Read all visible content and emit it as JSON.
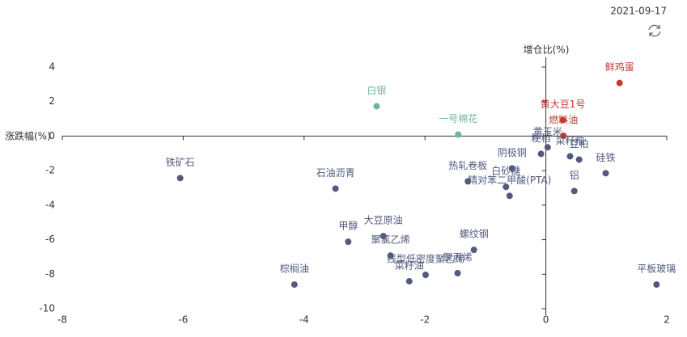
{
  "date": "2021-09-17",
  "chart_data": {
    "type": "scatter",
    "x_label": "增仓比(%)",
    "y_label": "涨跌幅(%)",
    "labels": [
      "鲜鸡蛋",
      "白银",
      "一号棉花",
      "黄大豆1号",
      "燃料油",
      "黄玉米",
      "粳稻",
      "菜籽粕",
      "豆粕",
      "硅铁",
      "铝",
      "阴极铜",
      "热轧卷板",
      "白砂糖",
      "精对苯二甲酸(PTA)",
      "铁矿石",
      "石油沥青",
      "甲醇",
      "大豆原油",
      "聚氯乙烯",
      "螺纹钢",
      "线型低密度聚乙烯",
      "聚丙烯",
      "菜籽油",
      "棕榈油",
      "平板玻璃"
    ],
    "x": [
      1.22,
      -2.8,
      -1.45,
      0.28,
      0.29,
      0.03,
      -0.08,
      0.4,
      0.55,
      0.99,
      0.47,
      -0.56,
      -1.29,
      -0.66,
      -0.6,
      -6.05,
      -3.48,
      -3.27,
      -2.69,
      -2.57,
      -1.19,
      -1.99,
      -1.46,
      -2.26,
      -4.16,
      1.83
    ],
    "values": [
      3.08,
      1.73,
      0.09,
      0.93,
      0.02,
      -0.65,
      -1.03,
      -1.17,
      -1.36,
      -2.15,
      -3.18,
      -1.87,
      -2.62,
      -2.94,
      -3.46,
      -2.43,
      -3.04,
      -6.12,
      -5.79,
      -6.92,
      -6.59,
      -8.04,
      -7.94,
      -8.41,
      -8.6,
      -8.6
    ],
    "colors": [
      "#c23b30",
      "#6fb59d",
      "#6fb59d",
      "#c23b30",
      "#c23b30",
      "#525a7e",
      "#525a7e",
      "#525a7e",
      "#525a7e",
      "#525a7e",
      "#525a7e",
      "#525a7e",
      "#525a7e",
      "#525a7e",
      "#525a7e",
      "#525a7e",
      "#525a7e",
      "#525a7e",
      "#525a7e",
      "#525a7e",
      "#525a7e",
      "#525a7e",
      "#525a7e",
      "#525a7e",
      "#525a7e",
      "#525a7e"
    ],
    "xlim": [
      -8,
      2
    ],
    "xticks": [
      -8,
      -6,
      -4,
      -2,
      0,
      2
    ],
    "ylim": [
      -10,
      4
    ],
    "yticks": [
      -10,
      -8,
      -6,
      -4,
      -2,
      0,
      2,
      4
    ]
  }
}
